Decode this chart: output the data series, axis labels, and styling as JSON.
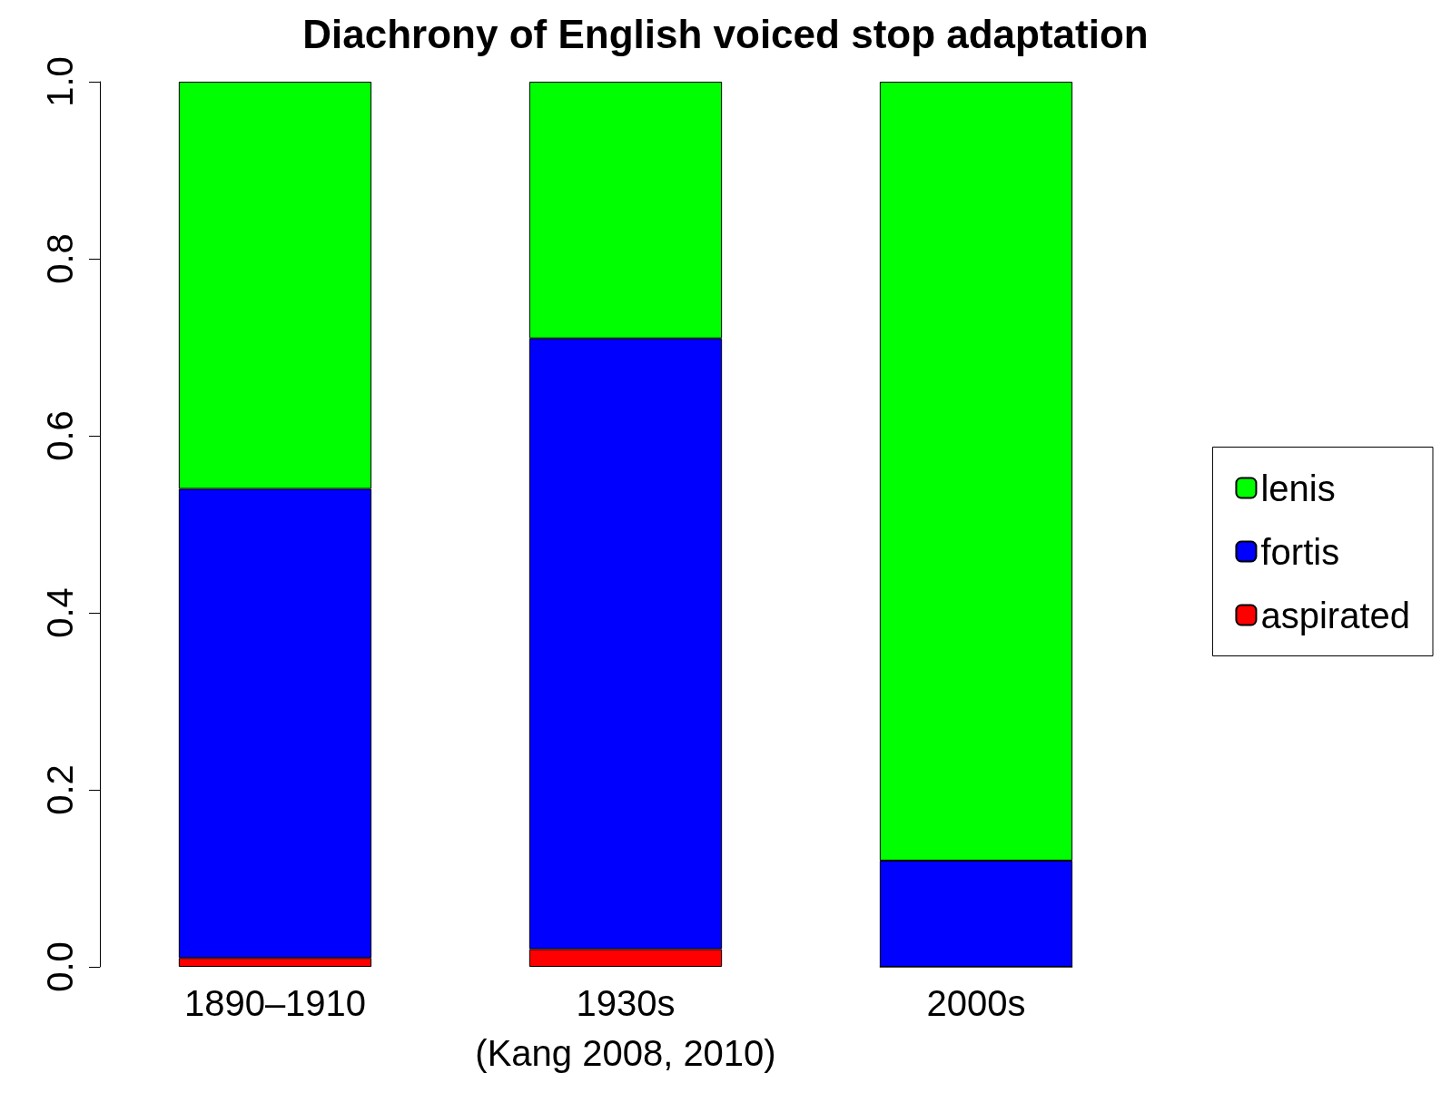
{
  "chart_data": {
    "type": "bar",
    "stacked": true,
    "title": "Diachrony of English voiced stop adaptation",
    "xlabel": "(Kang 2008, 2010)",
    "categories": [
      "1890–1910",
      "1930s",
      "2000s"
    ],
    "series": [
      {
        "name": "aspirated",
        "color": "#ff0000",
        "values": [
          0.01,
          0.02,
          0
        ]
      },
      {
        "name": "fortis",
        "color": "#0000ff",
        "values": [
          0.53,
          0.69,
          0.12
        ]
      },
      {
        "name": "lenis",
        "color": "#00ff00",
        "values": [
          0.46,
          0.29,
          0.88
        ]
      }
    ],
    "ylim": [
      0,
      1
    ],
    "yticks": [
      {
        "value": 0,
        "label": "0.0"
      },
      0.2,
      0.4,
      0.6,
      0.8,
      {
        "value": 1,
        "label": "1.0"
      }
    ],
    "grid": false,
    "legend": "right"
  }
}
